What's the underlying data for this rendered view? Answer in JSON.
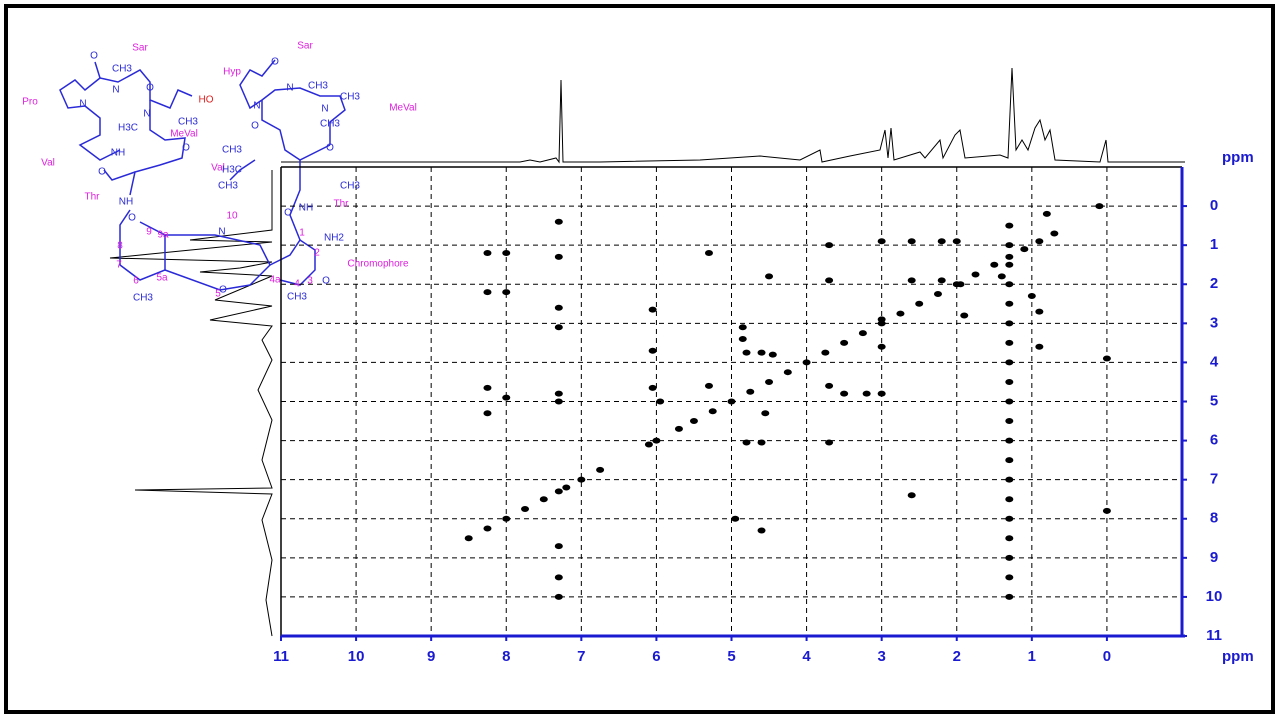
{
  "chart_data": {
    "type": "scatter",
    "x_label": "ppm",
    "y_label": "ppm",
    "xlim": [
      11,
      -1
    ],
    "ylim": [
      -1,
      11
    ],
    "xticks": [
      11,
      10,
      9,
      8,
      7,
      6,
      5,
      4,
      3,
      2,
      1,
      0
    ],
    "yticks": [
      0,
      1,
      2,
      3,
      4,
      5,
      6,
      7,
      8,
      9,
      10,
      11
    ],
    "grid": true,
    "series": [
      {
        "color": "#000000",
        "x": [
          8.5,
          8.25,
          8.0,
          7.75,
          7.5,
          7.3,
          7.2,
          7.0,
          6.75,
          6.1,
          6.0,
          5.7,
          5.5,
          5.25,
          5.0,
          4.75,
          4.5,
          4.25,
          4.0,
          3.75,
          3.5,
          3.25,
          3.0,
          2.75,
          2.5,
          2.25,
          2.0,
          1.75,
          1.5,
          1.3,
          1.1,
          0.9,
          0.7,
          8.25,
          8.25,
          8.25,
          8.25,
          8.0,
          8.0,
          8.0,
          7.3,
          7.3,
          7.3,
          7.3,
          7.3,
          7.3,
          7.3,
          7.3,
          7.3,
          6.05,
          6.05,
          6.05,
          5.95,
          5.3,
          5.3,
          4.85,
          4.85,
          4.8,
          4.6,
          4.5,
          4.45,
          4.55,
          4.6,
          4.95,
          4.8,
          4.6,
          3.7,
          3.7,
          3.7,
          3.7,
          3.5,
          3.2,
          3.0,
          3.0,
          3.0,
          3.0,
          2.6,
          2.6,
          2.6,
          2.2,
          2.2,
          2.0,
          1.95,
          1.9,
          1.4,
          1.0,
          0.9,
          0.9,
          0.8,
          0.1,
          0.0,
          0.0,
          1.3,
          1.3,
          1.3,
          1.3,
          1.3,
          1.3,
          1.3,
          1.3,
          1.3,
          1.3,
          1.3,
          1.3,
          1.3,
          1.3,
          1.3,
          1.3,
          1.3,
          1.3,
          1.3,
          1.3
        ],
        "values": [
          8.5,
          8.25,
          8.0,
          7.75,
          7.5,
          7.3,
          7.2,
          7.0,
          6.75,
          6.1,
          6.0,
          5.7,
          5.5,
          5.25,
          5.0,
          4.75,
          4.5,
          4.25,
          4.0,
          3.75,
          3.5,
          3.25,
          3.0,
          2.75,
          2.5,
          2.25,
          2.0,
          1.75,
          1.5,
          1.3,
          1.1,
          0.9,
          0.7,
          1.2,
          2.2,
          4.65,
          5.3,
          1.2,
          2.2,
          4.9,
          0.4,
          1.3,
          2.6,
          3.1,
          4.8,
          5.0,
          8.7,
          9.5,
          10.0,
          2.65,
          3.7,
          4.65,
          5.0,
          1.2,
          4.6,
          3.1,
          3.4,
          3.75,
          3.75,
          1.8,
          3.8,
          5.3,
          8.3,
          8.0,
          6.05,
          6.05,
          1.0,
          1.9,
          4.6,
          6.05,
          4.8,
          4.8,
          4.8,
          0.9,
          2.9,
          3.6,
          0.9,
          1.9,
          7.4,
          0.9,
          1.9,
          0.9,
          2.0,
          2.8,
          1.8,
          2.3,
          2.7,
          3.6,
          0.2,
          0.0,
          3.9,
          7.8,
          0.5,
          1.0,
          1.5,
          2.0,
          2.5,
          3.0,
          3.5,
          4.0,
          4.5,
          5.0,
          5.5,
          6.0,
          6.5,
          7.0,
          7.5,
          8.0,
          8.5,
          9.0,
          9.5,
          10.0
        ]
      }
    ]
  },
  "structure": {
    "residues": [
      "Sar",
      "Sar",
      "Pro",
      "Hyp",
      "MeVal",
      "MeVal",
      "Val",
      "Val",
      "Thr",
      "Thr",
      "Chromophore",
      "10",
      "9",
      "9a",
      "8",
      "7",
      "6",
      "5a",
      "5",
      "4a",
      "4",
      "3",
      "2",
      "1"
    ],
    "atoms": [
      "O",
      "CH3",
      "N",
      "O",
      "N",
      "N",
      "H3C",
      "CH3",
      "O",
      "NH",
      "O",
      "NH",
      "O",
      "CH3",
      "O",
      "N",
      "CH3",
      "N",
      "CH3",
      "O",
      "N",
      "CH3",
      "CH3",
      "O",
      "NH",
      "O",
      "N",
      "O",
      "NH2",
      "O",
      "CH3",
      "CH3",
      "H3C",
      "CH3"
    ],
    "hydroxyl": "HO"
  }
}
